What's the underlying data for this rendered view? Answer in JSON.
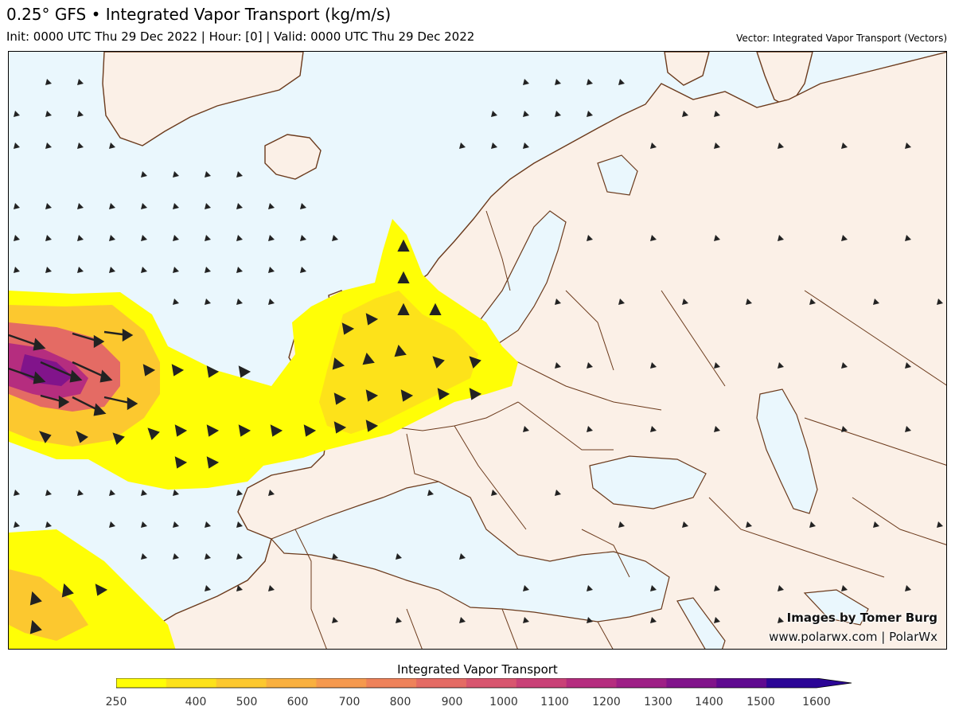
{
  "header": {
    "title": "0.25° GFS • Integrated Vapor Transport (kg/m/s)",
    "subtitle": "Init: 0000 UTC Thu 29 Dec 2022 | Hour: [0] | Valid: 0000 UTC Thu 29 Dec 2022",
    "vector_note": "Vector: Integrated Vapor Transport (Vectors)"
  },
  "credits": {
    "line1": "Images by Tomer Burg",
    "line2": "www.polarwx.com | PolarWx"
  },
  "colorbar": {
    "title": "Integrated Vapor Transport",
    "ticks": [
      "250",
      "400",
      "500",
      "600",
      "700",
      "800",
      "900",
      "1000",
      "1100",
      "1200",
      "1300",
      "1400",
      "1500",
      "1600"
    ],
    "colors": [
      "#fffe06",
      "#fde21a",
      "#fcc82f",
      "#f9b03f",
      "#f5994e",
      "#ee825a",
      "#e46b64",
      "#d8566f",
      "#c94177",
      "#b52d7f",
      "#9e1f86",
      "#81148b",
      "#5f0a90",
      "#2b0596"
    ]
  },
  "map": {
    "ocean_color": "#eaf7fd",
    "land_color": "#fbf0e7",
    "border_color": "#6b3a1c"
  }
}
